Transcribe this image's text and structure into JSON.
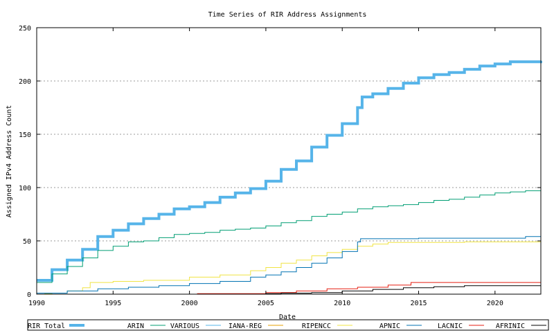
{
  "chart_data": {
    "type": "line",
    "title": "Time Series of RIR Address Assignments",
    "xlabel": "Date",
    "ylabel": "Assigned IPv4 Address Count",
    "xlim": [
      1990,
      2023
    ],
    "ylim": [
      0,
      250
    ],
    "xticks": [
      "1990",
      "1995",
      "2000",
      "2005",
      "2010",
      "2015",
      "2020"
    ],
    "yticks": [
      "0",
      "50",
      "100",
      "150",
      "200",
      "250"
    ],
    "grid": "horizontal dotted",
    "legend": "bottom",
    "series": [
      {
        "name": "RIR Total",
        "color": "#56b4e9",
        "width": 4,
        "x": [
          1990,
          1991,
          1992,
          1993,
          1994,
          1995,
          1996,
          1997,
          1998,
          1999,
          2000,
          2001,
          2002,
          2003,
          2004,
          2005,
          2006,
          2007,
          2008,
          2009,
          2010,
          2011,
          2011.3,
          2012,
          2013,
          2014,
          2015,
          2016,
          2017,
          2018,
          2019,
          2020,
          2021,
          2022,
          2023
        ],
        "y": [
          13,
          23,
          32,
          42,
          54,
          60,
          66,
          71,
          75,
          80,
          82,
          86,
          91,
          95,
          99,
          106,
          117,
          125,
          138,
          149,
          160,
          175,
          185,
          188,
          193,
          198,
          203,
          206,
          208,
          211,
          214,
          216,
          218,
          218,
          219
        ]
      },
      {
        "name": "ARIN",
        "color": "#009e73",
        "width": 1,
        "x": [
          1990,
          1991,
          1992,
          1993,
          1994,
          1995,
          1996,
          1997,
          1998,
          1999,
          2000,
          2001,
          2002,
          2003,
          2004,
          2005,
          2006,
          2007,
          2008,
          2009,
          2010,
          2011,
          2012,
          2013,
          2014,
          2015,
          2016,
          2017,
          2018,
          2019,
          2020,
          2021,
          2022,
          2023
        ],
        "y": [
          11,
          19,
          26,
          34,
          41,
          45,
          49,
          50,
          53,
          56,
          57,
          58,
          60,
          61,
          62,
          64,
          67,
          69,
          73,
          75,
          77,
          80,
          82,
          83,
          84,
          86,
          88,
          89,
          91,
          93,
          95,
          96,
          97,
          99
        ]
      },
      {
        "name": "VARIOUS",
        "color": "#56b4e9",
        "width": 1,
        "x": [],
        "y": []
      },
      {
        "name": "IANA-REG",
        "color": "#e69f00",
        "width": 1,
        "x": [],
        "y": []
      },
      {
        "name": "RIPENCC",
        "color": "#f0e442",
        "width": 1,
        "x": [
          1990.5,
          1991,
          1992,
          1993,
          1993.5,
          1995,
          1997,
          2000,
          2002,
          2004,
          2005,
          2006,
          2007,
          2008,
          2009,
          2010,
          2011,
          2012,
          2013,
          2018,
          2023
        ],
        "y": [
          0.5,
          1,
          3,
          6,
          11,
          12,
          13,
          16,
          18,
          22,
          25,
          29,
          32,
          36,
          39,
          42,
          45,
          47,
          48.5,
          49,
          50
        ]
      },
      {
        "name": "APNIC",
        "color": "#0072b2",
        "width": 1,
        "x": [
          1990,
          1992,
          1994,
          1996,
          1998,
          2000,
          2002,
          2004,
          2005,
          2006,
          2007,
          2008,
          2009,
          2010,
          2011,
          2011.2,
          2015,
          2022,
          2023
        ],
        "y": [
          1,
          3,
          5,
          6.5,
          8,
          10,
          12,
          16,
          18,
          21,
          25,
          29,
          34,
          40,
          49,
          52,
          52.5,
          54,
          54
        ]
      },
      {
        "name": "LACNIC",
        "color": "#e51e10",
        "width": 1,
        "x": [
          2000.5,
          2005,
          2007,
          2009,
          2011,
          2013,
          2014.5,
          2023
        ],
        "y": [
          0.5,
          1.5,
          3,
          5,
          6.5,
          8.5,
          11,
          11
        ]
      },
      {
        "name": "AFRINIC",
        "color": "#000000",
        "width": 1,
        "x": [
          1994,
          2005,
          2006,
          2008,
          2010,
          2012,
          2014,
          2016,
          2018,
          2023
        ],
        "y": [
          0,
          0.5,
          1,
          1.5,
          3,
          4.5,
          6,
          7,
          8,
          8.5
        ]
      }
    ]
  }
}
